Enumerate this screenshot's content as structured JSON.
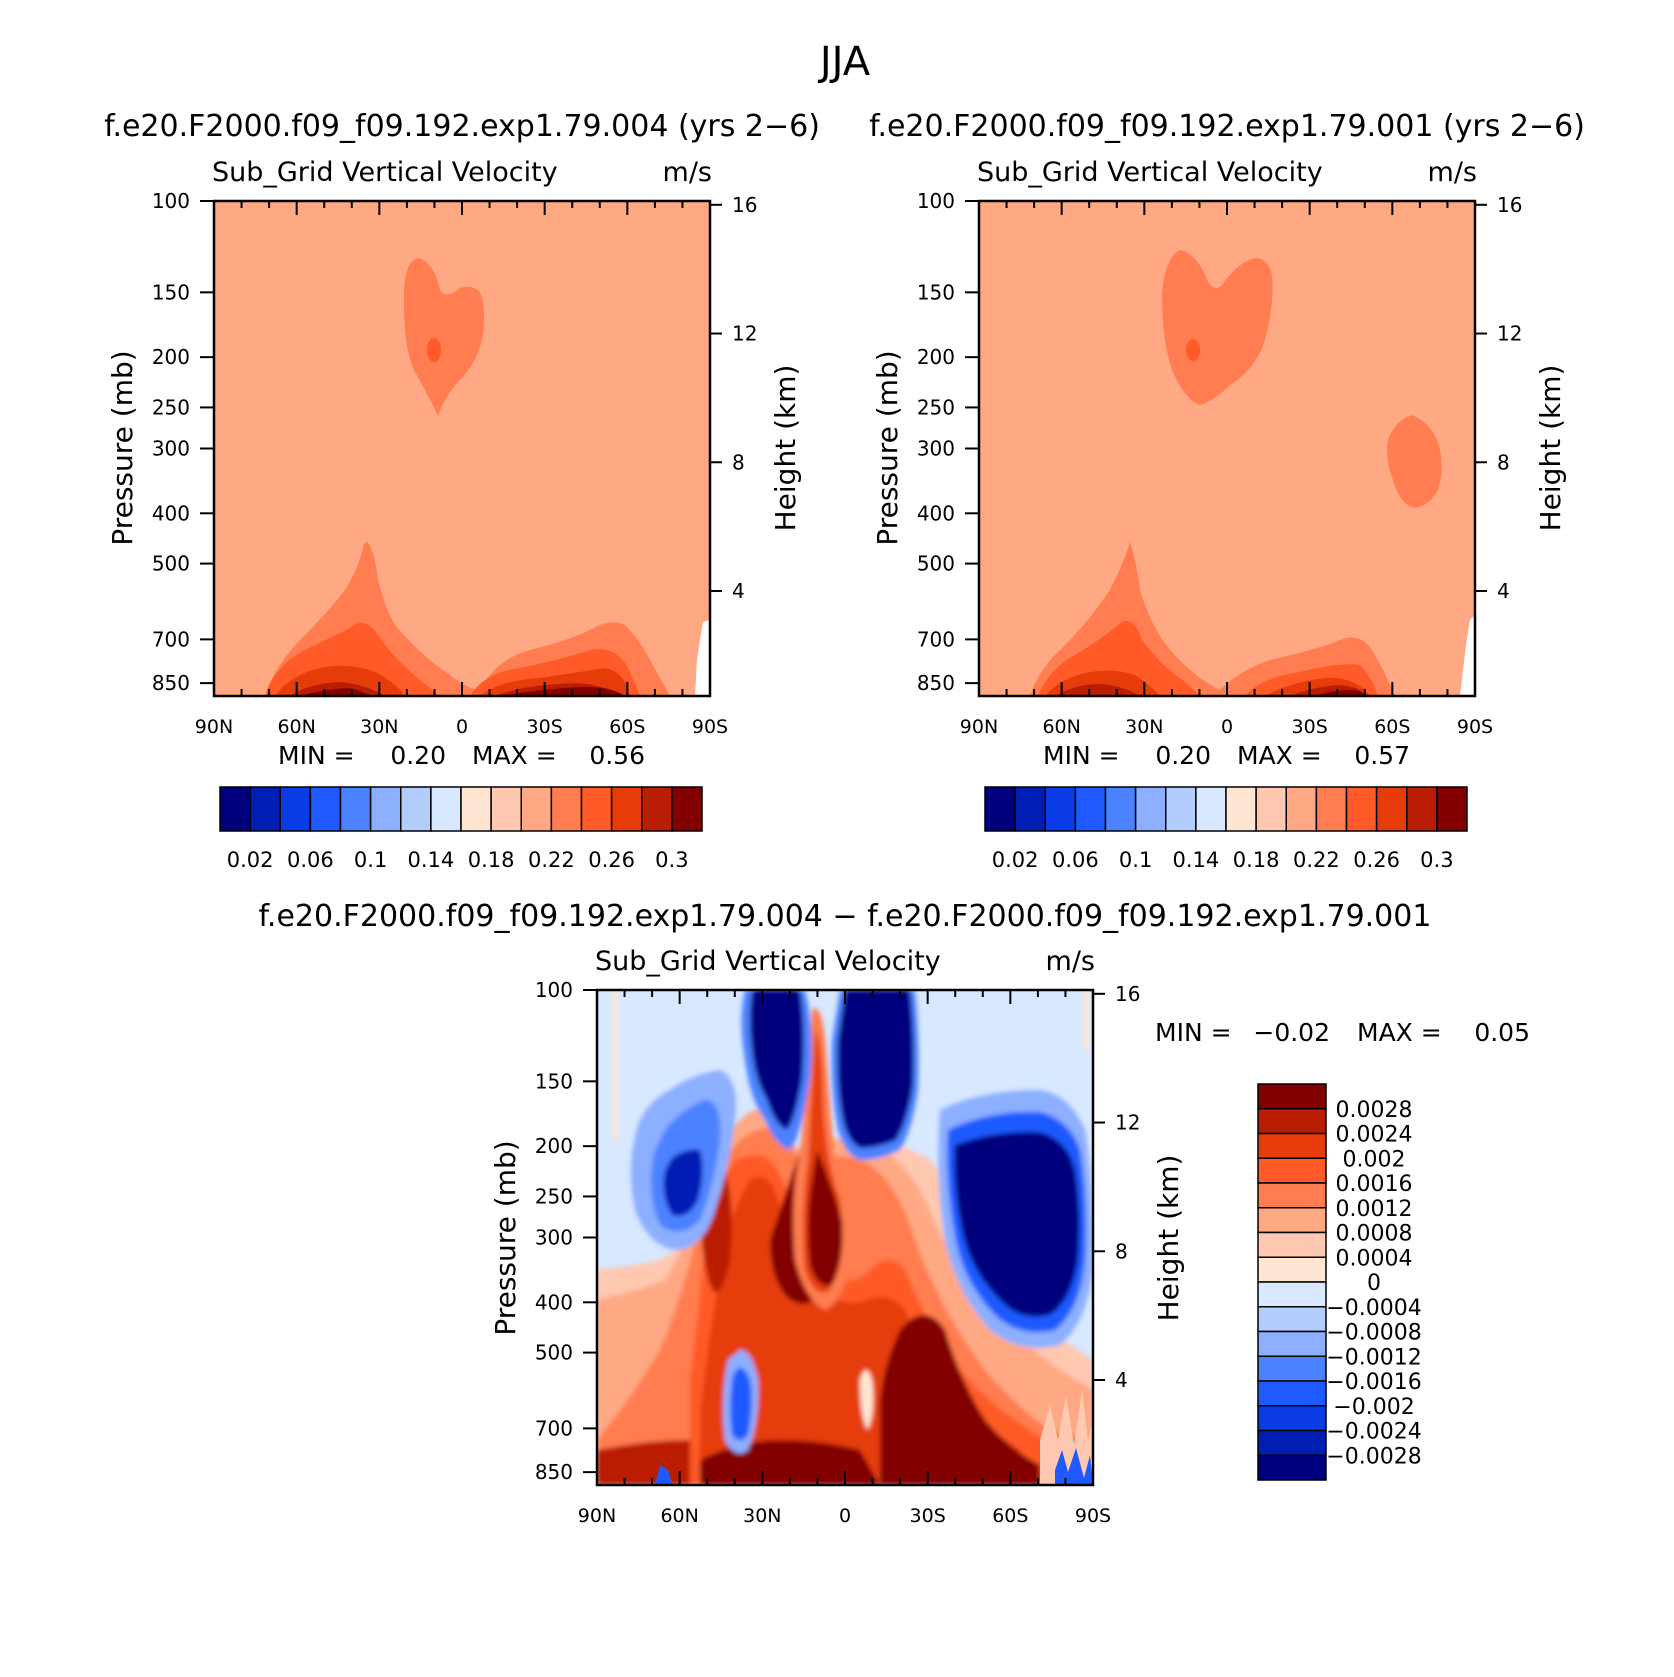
{
  "figure": {
    "title": "JJA"
  },
  "colors": {
    "seq": [
      "#00007f",
      "#001eb4",
      "#0a3ce6",
      "#1e5aff",
      "#4b82ff",
      "#8cafff",
      "#b4cdff",
      "#d7e8ff",
      "#ffe6d2",
      "#ffc8b0",
      "#ffa884",
      "#ff7d50",
      "#ff5a28",
      "#e63c0a",
      "#b91e05",
      "#820000"
    ],
    "div": [
      "#00007f",
      "#001eb4",
      "#0a3ce6",
      "#1e5aff",
      "#4b82ff",
      "#8cafff",
      "#b4cdff",
      "#d7e8ff",
      "#ffe6d2",
      "#ffc8b0",
      "#ffa884",
      "#ff7d50",
      "#ff5a28",
      "#e63c0a",
      "#b91e05",
      "#820000"
    ]
  },
  "panels": {
    "top_left": {
      "case_title": "f.e20.F2000.f09_f09.192.exp1.79.004 (yrs 2−6)",
      "var_title": "Sub_Grid Vertical Velocity",
      "units": "m/s",
      "ylabel": "Pressure (mb)",
      "y2label": "Height (km)",
      "min_label": "MIN =",
      "min_value": "0.20",
      "max_label": "MAX =",
      "max_value": "0.56"
    },
    "top_right": {
      "case_title": "f.e20.F2000.f09_f09.192.exp1.79.001 (yrs 2−6)",
      "var_title": "Sub_Grid Vertical Velocity",
      "units": "m/s",
      "ylabel": "Pressure (mb)",
      "y2label": "Height (km)",
      "min_label": "MIN =",
      "min_value": "0.20",
      "max_label": "MAX =",
      "max_value": "0.57"
    },
    "bottom": {
      "case_title": "f.e20.F2000.f09_f09.192.exp1.79.004 − f.e20.F2000.f09_f09.192.exp1.79.001",
      "var_title": "Sub_Grid Vertical Velocity",
      "units": "m/s",
      "ylabel": "Pressure (mb)",
      "y2label": "Height (km)",
      "min_label": "MIN =",
      "min_value": "−0.02",
      "max_label": "MAX =",
      "max_value": "0.05"
    }
  },
  "chart_data": [
    {
      "type": "heatmap",
      "name": "top_left",
      "x_ticks": [
        "90N",
        "60N",
        "30N",
        "0",
        "30S",
        "60S",
        "90S"
      ],
      "y_ticks": [
        "100",
        "150",
        "200",
        "250",
        "300",
        "400",
        "500",
        "700",
        "850"
      ],
      "y_tick_values": [
        100,
        150,
        200,
        250,
        300,
        400,
        500,
        700,
        850
      ],
      "y2_ticks": [
        "16",
        "12",
        "8",
        "4"
      ],
      "y2_tick_values": [
        16,
        12,
        8,
        4
      ],
      "colorbar_labels": [
        "0.02",
        "0.06",
        "0.1",
        "0.14",
        "0.18",
        "0.22",
        "0.26",
        "0.3"
      ],
      "colorbar_levels": [
        0.02,
        0.04,
        0.06,
        0.08,
        0.1,
        0.12,
        0.14,
        0.16,
        0.18,
        0.2,
        0.22,
        0.24,
        0.26,
        0.28,
        0.3
      ],
      "min": 0.2,
      "max": 0.56
    },
    {
      "type": "heatmap",
      "name": "top_right",
      "x_ticks": [
        "90N",
        "60N",
        "30N",
        "0",
        "30S",
        "60S",
        "90S"
      ],
      "y_ticks": [
        "100",
        "150",
        "200",
        "250",
        "300",
        "400",
        "500",
        "700",
        "850"
      ],
      "y_tick_values": [
        100,
        150,
        200,
        250,
        300,
        400,
        500,
        700,
        850
      ],
      "y2_ticks": [
        "16",
        "12",
        "8",
        "4"
      ],
      "y2_tick_values": [
        16,
        12,
        8,
        4
      ],
      "colorbar_labels": [
        "0.02",
        "0.06",
        "0.1",
        "0.14",
        "0.18",
        "0.22",
        "0.26",
        "0.3"
      ],
      "colorbar_levels": [
        0.02,
        0.04,
        0.06,
        0.08,
        0.1,
        0.12,
        0.14,
        0.16,
        0.18,
        0.2,
        0.22,
        0.24,
        0.26,
        0.28,
        0.3
      ],
      "min": 0.2,
      "max": 0.57
    },
    {
      "type": "heatmap",
      "name": "bottom_difference",
      "x_ticks": [
        "90N",
        "60N",
        "30N",
        "0",
        "30S",
        "60S",
        "90S"
      ],
      "y_ticks": [
        "100",
        "150",
        "200",
        "250",
        "300",
        "400",
        "500",
        "700",
        "850"
      ],
      "y_tick_values": [
        100,
        150,
        200,
        250,
        300,
        400,
        500,
        700,
        850
      ],
      "y2_ticks": [
        "16",
        "12",
        "8",
        "4"
      ],
      "y2_tick_values": [
        16,
        12,
        8,
        4
      ],
      "colorbar_labels": [
        "0.0028",
        "0.0024",
        "0.002",
        "0.0016",
        "0.0012",
        "0.0008",
        "0.0004",
        "0",
        "−0.0004",
        "−0.0008",
        "−0.0012",
        "−0.0016",
        "−0.002",
        "−0.0024",
        "−0.0028"
      ],
      "colorbar_levels": [
        0.0028,
        0.0024,
        0.002,
        0.0016,
        0.0012,
        0.0008,
        0.0004,
        0,
        -0.0004,
        -0.0008,
        -0.0012,
        -0.0016,
        -0.002,
        -0.0024,
        -0.0028
      ],
      "min": -0.02,
      "max": 0.05
    }
  ]
}
